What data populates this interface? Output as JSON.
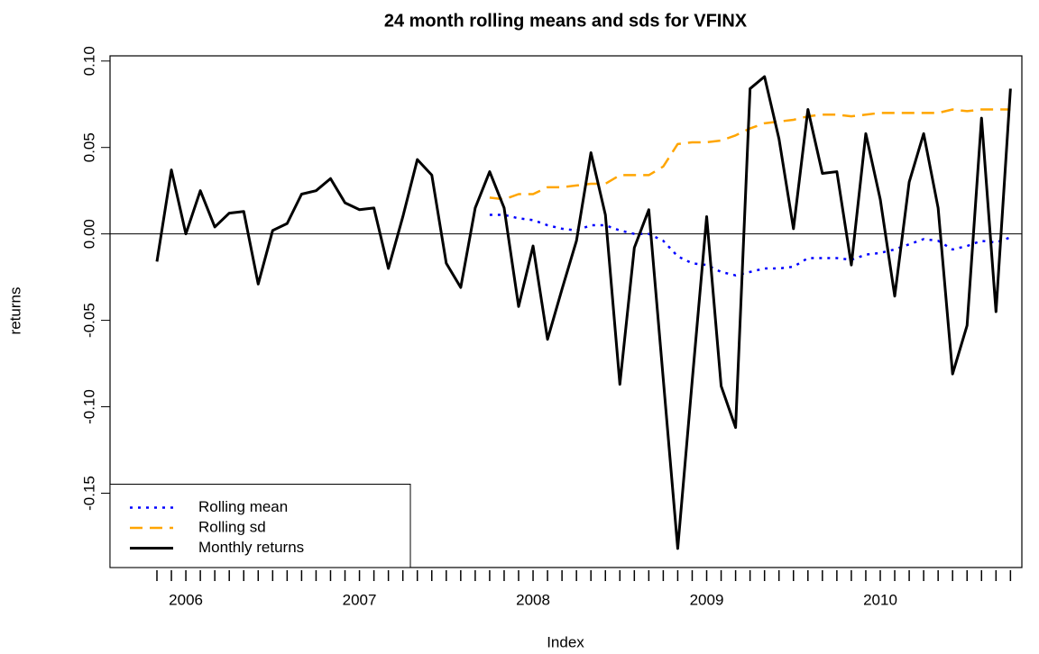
{
  "chart_data": {
    "type": "line",
    "title": "24 month rolling means and sds for VFINX",
    "x_label": "Index",
    "y_label": "returns",
    "categories": [
      null,
      null,
      "2006",
      null,
      null,
      null,
      null,
      null,
      null,
      null,
      null,
      null,
      null,
      null,
      "2007",
      null,
      null,
      null,
      null,
      null,
      null,
      null,
      null,
      null,
      null,
      null,
      "2008",
      null,
      null,
      null,
      null,
      null,
      null,
      null,
      null,
      null,
      null,
      null,
      "2009",
      null,
      null,
      null,
      null,
      null,
      null,
      null,
      null,
      null,
      null,
      null,
      "2010",
      null,
      null,
      null,
      null,
      null,
      null,
      null,
      null,
      null
    ],
    "series": [
      {
        "name": "Rolling mean",
        "color": "#0000ff",
        "dash": "dotted",
        "values": [
          null,
          null,
          null,
          null,
          null,
          null,
          null,
          null,
          null,
          null,
          null,
          null,
          null,
          null,
          null,
          null,
          null,
          null,
          null,
          null,
          null,
          null,
          null,
          0.011,
          0.011,
          0.009,
          0.008,
          0.005,
          0.003,
          0.002,
          0.005,
          0.005,
          0.002,
          0.0,
          0.0,
          -0.004,
          -0.013,
          -0.017,
          -0.018,
          -0.022,
          -0.024,
          -0.022,
          -0.02,
          -0.02,
          -0.019,
          -0.014,
          -0.014,
          -0.014,
          -0.015,
          -0.012,
          -0.011,
          -0.009,
          -0.006,
          -0.003,
          -0.004,
          -0.009,
          -0.007,
          -0.004,
          -0.005,
          -0.002
        ]
      },
      {
        "name": "Rolling sd",
        "color": "#ffa500",
        "dash": "dashed",
        "values": [
          null,
          null,
          null,
          null,
          null,
          null,
          null,
          null,
          null,
          null,
          null,
          null,
          null,
          null,
          null,
          null,
          null,
          null,
          null,
          null,
          null,
          null,
          null,
          0.021,
          0.02,
          0.023,
          0.023,
          0.027,
          0.027,
          0.028,
          0.029,
          0.029,
          0.034,
          0.034,
          0.034,
          0.039,
          0.052,
          0.053,
          0.053,
          0.054,
          0.057,
          0.061,
          0.064,
          0.065,
          0.066,
          0.068,
          0.069,
          0.069,
          0.068,
          0.069,
          0.07,
          0.07,
          0.07,
          0.07,
          0.07,
          0.072,
          0.071,
          0.072,
          0.072,
          0.072
        ]
      },
      {
        "name": "Monthly returns",
        "color": "#000000",
        "dash": "solid",
        "values": [
          -0.016,
          0.037,
          0.0,
          0.025,
          0.004,
          0.012,
          0.013,
          -0.029,
          0.002,
          0.006,
          0.023,
          0.025,
          0.032,
          0.018,
          0.014,
          0.015,
          -0.02,
          0.01,
          0.043,
          0.034,
          -0.017,
          -0.031,
          0.015,
          0.036,
          0.015,
          -0.042,
          -0.007,
          -0.061,
          -0.032,
          -0.004,
          0.047,
          0.011,
          -0.087,
          -0.008,
          0.014,
          -0.084,
          -0.182,
          -0.085,
          0.01,
          -0.088,
          -0.112,
          0.084,
          0.091,
          0.055,
          0.003,
          0.072,
          0.035,
          0.036,
          -0.018,
          0.058,
          0.02,
          -0.036,
          0.03,
          0.058,
          0.015,
          -0.081,
          -0.053,
          0.067,
          -0.045,
          0.084
        ]
      }
    ],
    "ylim": [
      -0.193,
      0.103
    ],
    "yticks": [
      -0.15,
      {
        "value": -0.1,
        "label": "-0.10"
      },
      -0.05,
      {
        "value": 0,
        "label": "0.00"
      },
      0.05,
      {
        "value": 0.1,
        "label": "0.10"
      }
    ],
    "hline": 0,
    "legend": "bottomleft"
  }
}
